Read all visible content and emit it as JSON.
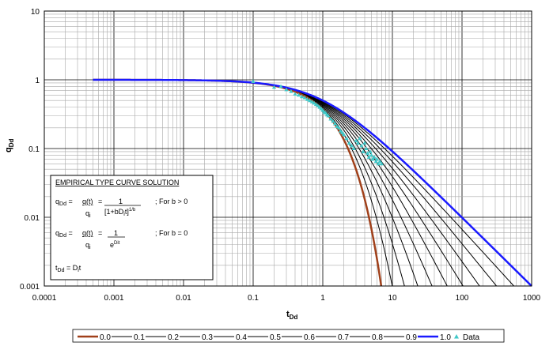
{
  "chart_data": {
    "type": "line",
    "title": "",
    "xlabel": "t",
    "xlabel_sub": "Dd",
    "ylabel": "q",
    "ylabel_sub": "Dd",
    "xscale": "log",
    "yscale": "log",
    "xlim": [
      0.0001,
      1000
    ],
    "ylim": [
      0.001,
      10
    ],
    "x_ticks": [
      "0.0001",
      "0.001",
      "0.01",
      "0.1",
      "1",
      "10",
      "100",
      "1000"
    ],
    "y_ticks": [
      "0.001",
      "0.01",
      "0.1",
      "1",
      "10"
    ],
    "grid": true,
    "legend_position": "bottom",
    "series": [
      {
        "name": "0.0",
        "b": 0.0,
        "color": "#a0401a",
        "width": 2.5
      },
      {
        "name": "0.1",
        "b": 0.1,
        "color": "#000000",
        "width": 1
      },
      {
        "name": "0.2",
        "b": 0.2,
        "color": "#000000",
        "width": 1
      },
      {
        "name": "0.3",
        "b": 0.3,
        "color": "#000000",
        "width": 1
      },
      {
        "name": "0.4",
        "b": 0.4,
        "color": "#000000",
        "width": 1
      },
      {
        "name": "0.5",
        "b": 0.5,
        "color": "#000000",
        "width": 1
      },
      {
        "name": "0.6",
        "b": 0.6,
        "color": "#000000",
        "width": 1
      },
      {
        "name": "0.7",
        "b": 0.7,
        "color": "#000000",
        "width": 1
      },
      {
        "name": "0.8",
        "b": 0.8,
        "color": "#000000",
        "width": 1
      },
      {
        "name": "0.9",
        "b": 0.9,
        "color": "#000000",
        "width": 1
      },
      {
        "name": "1.0",
        "b": 1.0,
        "color": "#1a1aff",
        "width": 2.5
      }
    ],
    "data_series": {
      "name": "Data",
      "color": "#40c8c8",
      "x": [
        0.1,
        0.2,
        0.25,
        0.3,
        0.35,
        0.4,
        0.45,
        0.5,
        0.55,
        0.6,
        0.65,
        0.7,
        0.75,
        0.8,
        0.85,
        0.9,
        0.95,
        1.0,
        1.05,
        1.1,
        1.15,
        1.2,
        1.3,
        1.4,
        1.5,
        1.6,
        1.7,
        1.8,
        1.9,
        2.0,
        2.2,
        2.4,
        2.6,
        2.8,
        3.0,
        3.2,
        3.4,
        3.6,
        3.8,
        4.0,
        4.2,
        4.4,
        4.6,
        4.8,
        5.0,
        5.2,
        5.5,
        5.8,
        6.0,
        6.3,
        6.6,
        7.0
      ],
      "y": [
        0.95,
        0.78,
        0.8,
        0.72,
        0.68,
        0.62,
        0.6,
        0.57,
        0.55,
        0.52,
        0.5,
        0.48,
        0.46,
        0.44,
        0.42,
        0.4,
        0.38,
        0.36,
        0.34,
        0.33,
        0.31,
        0.3,
        0.27,
        0.25,
        0.23,
        0.21,
        0.2,
        0.18,
        0.17,
        0.16,
        0.14,
        0.12,
        0.11,
        0.1,
        0.13,
        0.12,
        0.14,
        0.11,
        0.09,
        0.12,
        0.1,
        0.085,
        0.075,
        0.09,
        0.08,
        0.07,
        0.075,
        0.065,
        0.07,
        0.06,
        0.065,
        0.06
      ]
    }
  },
  "solution_box": {
    "heading": "EMPIRICAL TYPE CURVE SOLUTION",
    "eq1": {
      "lhs": "q",
      "lhs_sub": "Dd",
      "mid": " = ",
      "num": "q(t)",
      "den": "q",
      "den_sub": "i",
      "eq": " = ",
      "rhs_num": "1",
      "rhs_den": "[1+bD",
      "rhs_den_sub": "i",
      "rhs_den_tail": "t]",
      "rhs_den_sup": "1/b",
      "cond": ";  For b > 0"
    },
    "eq2": {
      "lhs": "q",
      "lhs_sub": "Dd",
      "mid": " = ",
      "num": "q(t)",
      "den": "q",
      "den_sub": "i",
      "eq": " = ",
      "rhs_num": "1",
      "rhs_den": "e",
      "rhs_den_sup": "Dit",
      "cond": ";  For b = 0"
    },
    "eq3": {
      "lhs": "t",
      "lhs_sub": "Dd",
      "rhs": " = D",
      "rhs_sub": "i",
      "rhs_tail": "t"
    }
  }
}
